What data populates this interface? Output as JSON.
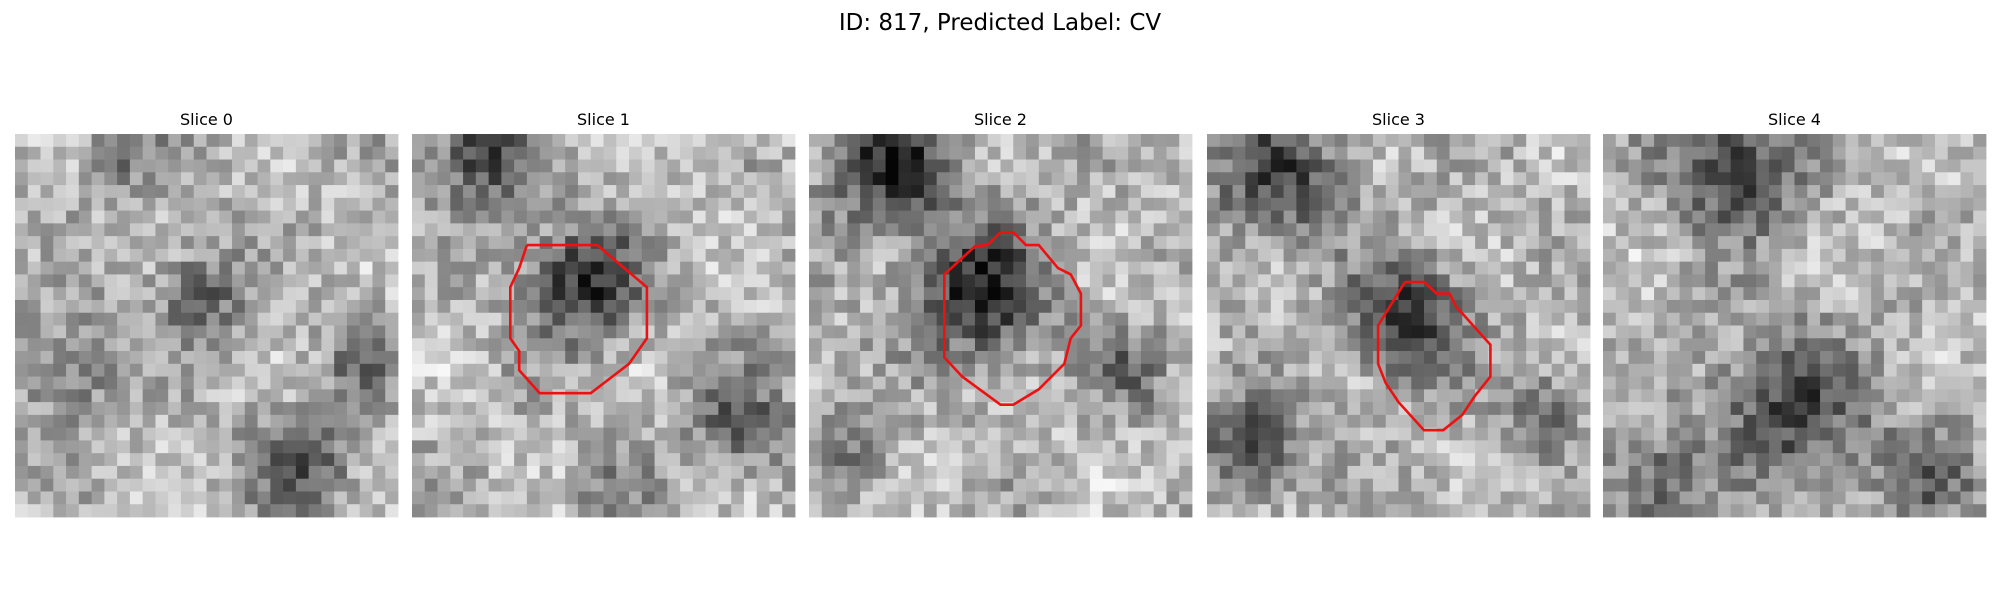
{
  "title": "ID: 817, Predicted Label: CV",
  "panels": [
    {
      "title": "Slice 0"
    },
    {
      "title": "Slice 1"
    },
    {
      "title": "Slice 2"
    },
    {
      "title": "Slice 3"
    },
    {
      "title": "Slice 4"
    }
  ]
}
